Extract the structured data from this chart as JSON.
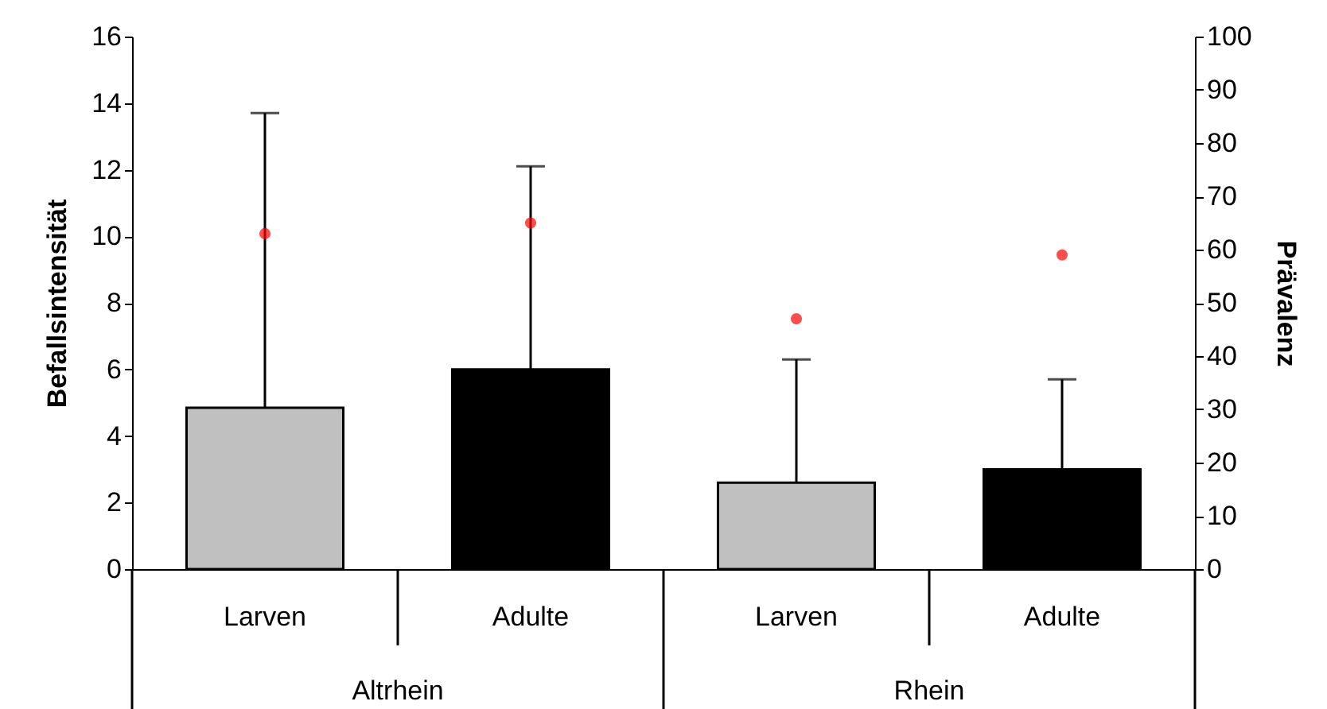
{
  "chart_data": {
    "type": "bar",
    "categories": [
      "Larven",
      "Adulte",
      "Larven",
      "Adulte"
    ],
    "series": [
      {
        "colors": [
          "#c0c0c0",
          "#000000",
          "#c0c0c0",
          "#000000"
        ],
        "values": [
          4.85,
          6.0,
          2.6,
          3.0
        ],
        "errors": [
          [
            4.85,
            13.7
          ],
          [
            6.0,
            12.1
          ],
          [
            2.6,
            6.3
          ],
          [
            3.0,
            5.7
          ]
        ]
      },
      {
        "type": "scatter",
        "axis": "y2",
        "color": "#ff0000",
        "marker": "circle",
        "values": [
          63,
          65,
          47,
          59
        ]
      }
    ],
    "ylabel": "Befallsintensität",
    "y2label": "Prävalenz",
    "ylim": [
      0,
      16
    ],
    "yticks": [
      0,
      2,
      4,
      6,
      8,
      10,
      12,
      14,
      16
    ],
    "y2lim": [
      0,
      100
    ],
    "y2ticks": [
      0,
      10,
      20,
      30,
      40,
      50,
      60,
      70,
      80,
      90,
      100
    ],
    "annotations": [
      "Altrhein",
      "Rhein"
    ],
    "grid": false
  }
}
